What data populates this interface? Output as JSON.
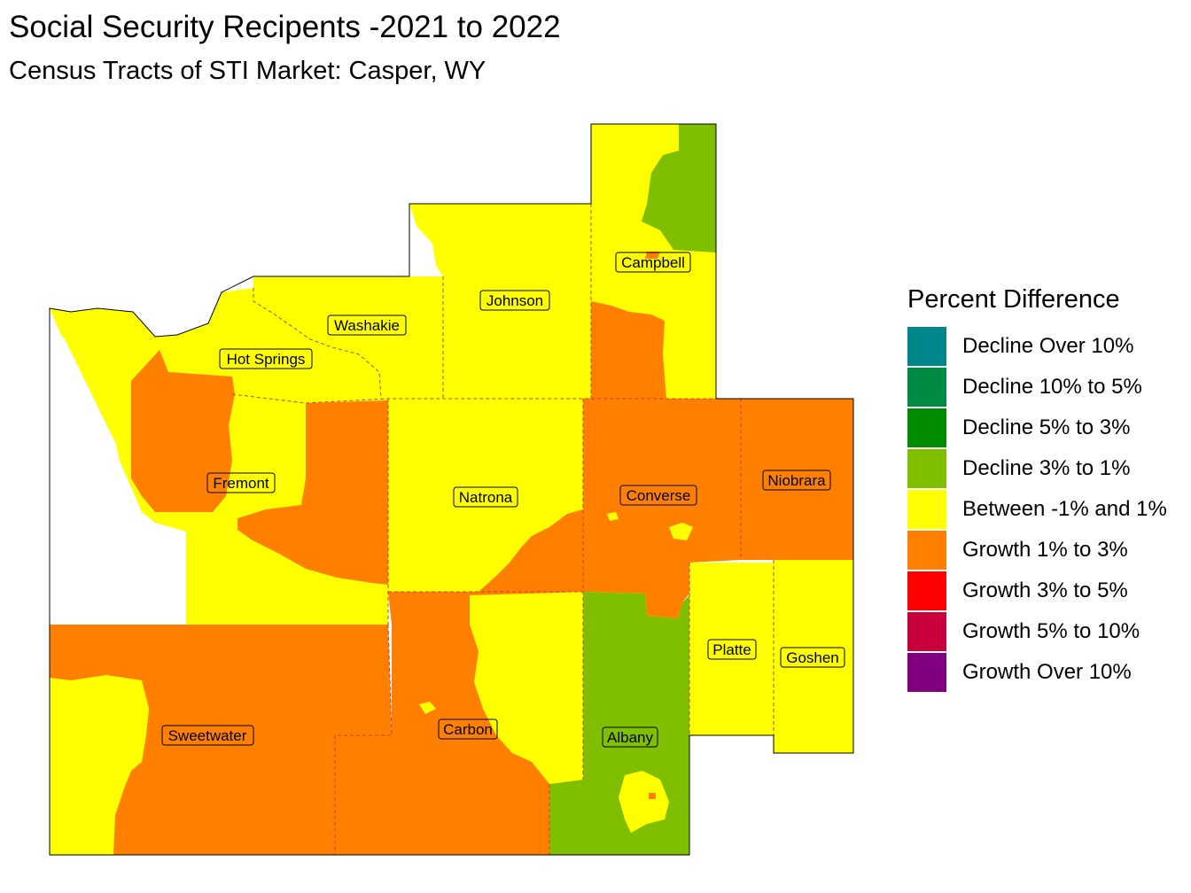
{
  "title": "Social Security Recipents -2021 to 2022",
  "subtitle": "Census Tracts of STI Market: Casper, WY",
  "legend": {
    "title": "Percent Difference",
    "items": [
      {
        "label": "Decline Over 10%",
        "color": "#00868B"
      },
      {
        "label": "Decline 10% to 5%",
        "color": "#008B45"
      },
      {
        "label": "Decline 5% to 3%",
        "color": "#008B00"
      },
      {
        "label": "Decline 3% to 1%",
        "color": "#7FBF00"
      },
      {
        "label": "Between -1% and 1%",
        "color": "#FFFF00"
      },
      {
        "label": "Growth 1% to 3%",
        "color": "#FF8000"
      },
      {
        "label": "Growth 3% to 5%",
        "color": "#FF0000"
      },
      {
        "label": "Growth 5% to 10%",
        "color": "#C8003C"
      },
      {
        "label": "Growth Over 10%",
        "color": "#800080"
      }
    ]
  },
  "counties": [
    {
      "name": "Campbell"
    },
    {
      "name": "Johnson"
    },
    {
      "name": "Washakie"
    },
    {
      "name": "Hot Springs"
    },
    {
      "name": "Fremont"
    },
    {
      "name": "Natrona"
    },
    {
      "name": "Converse"
    },
    {
      "name": "Niobrara"
    },
    {
      "name": "Platte"
    },
    {
      "name": "Goshen"
    },
    {
      "name": "Sweetwater"
    },
    {
      "name": "Carbon"
    },
    {
      "name": "Albany"
    }
  ]
}
